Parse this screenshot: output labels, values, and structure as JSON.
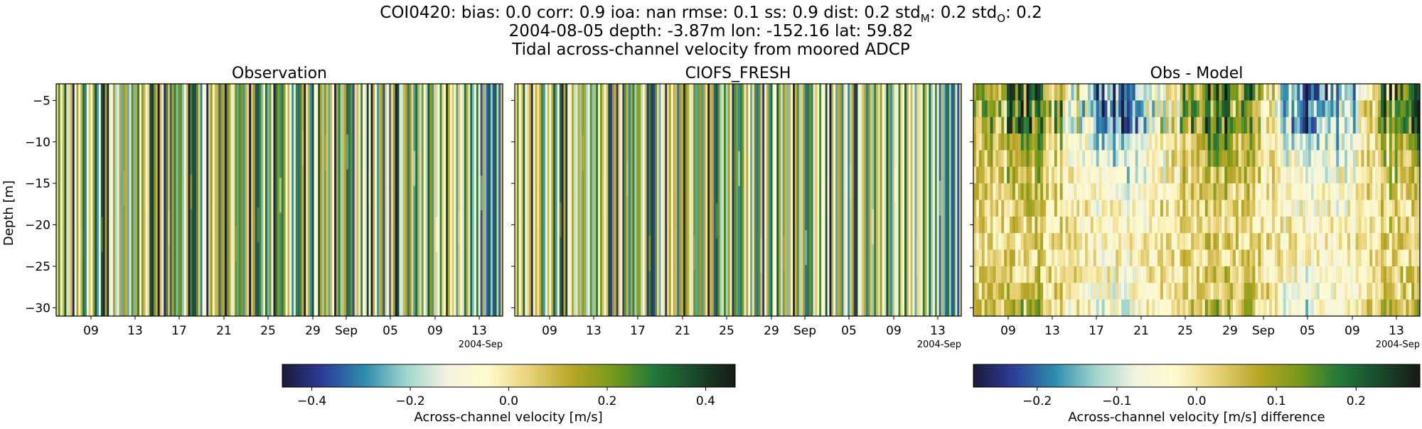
{
  "figure": {
    "title_lines": [
      "COI0420: bias: 0.0  corr: 0.9  ioa: nan  rmse: 0.1  ss: 0.9  dist: 0.2  std",
      "2004-08-05 depth: -3.87m lon: -152.16 lat: 59.82",
      "Tidal across-channel velocity from moored ADCP"
    ],
    "title_std_m_sub": "M",
    "title_std_m_value": ": 0.2  std",
    "title_std_o_sub": "O",
    "title_std_o_value": ": 0.2"
  },
  "colormap": [
    "#1a1a3a",
    "#2d3d9a",
    "#2e8cad",
    "#9fd4cf",
    "#f4f4e0",
    "#fffacd",
    "#e8d27a",
    "#b9a628",
    "#7a9a1a",
    "#237a3a",
    "#1a4a2a",
    "#171a16"
  ],
  "chart_data": [
    {
      "type": "heatmap",
      "title": "Observation",
      "ylabel": "Depth [m]",
      "xlabel": "",
      "ylim": [
        -31,
        -3
      ],
      "y_ticks": [
        -5,
        -10,
        -15,
        -20,
        -25,
        -30
      ],
      "x_tick_labels": [
        "09",
        "13",
        "17",
        "21",
        "25",
        "29",
        "Sep",
        "05",
        "09",
        "13"
      ],
      "x_offset_label": "2004-Sep",
      "value_range": [
        -0.46,
        0.46
      ],
      "colorbar_label": "Across-channel velocity [m/s]",
      "colorbar_ticks": [
        -0.4,
        -0.2,
        0.0,
        0.2,
        0.4
      ],
      "colorbar_tick_labels": [
        "−0.4",
        "−0.2",
        "0.0",
        "0.2",
        "0.4"
      ]
    },
    {
      "type": "heatmap",
      "title": "CIOFS_FRESH",
      "ylim": [
        -31,
        -3
      ],
      "x_tick_labels": [
        "09",
        "13",
        "17",
        "21",
        "25",
        "29",
        "Sep",
        "05",
        "09",
        "13"
      ],
      "x_offset_label": "2004-Sep",
      "value_range": [
        -0.46,
        0.46
      ]
    },
    {
      "type": "heatmap",
      "title": "Obs - Model",
      "ylim": [
        -31,
        -3
      ],
      "x_tick_labels": [
        "09",
        "13",
        "17",
        "21",
        "25",
        "29",
        "Sep",
        "05",
        "09",
        "13"
      ],
      "x_offset_label": "2004-Sep",
      "value_range": [
        -0.28,
        0.28
      ],
      "colorbar_label": "Across-channel velocity [m/s] difference",
      "colorbar_ticks": [
        -0.2,
        -0.1,
        0.0,
        0.1,
        0.2
      ],
      "colorbar_tick_labels": [
        "−0.2",
        "−0.1",
        "0.0",
        "0.1",
        "0.2"
      ]
    }
  ]
}
